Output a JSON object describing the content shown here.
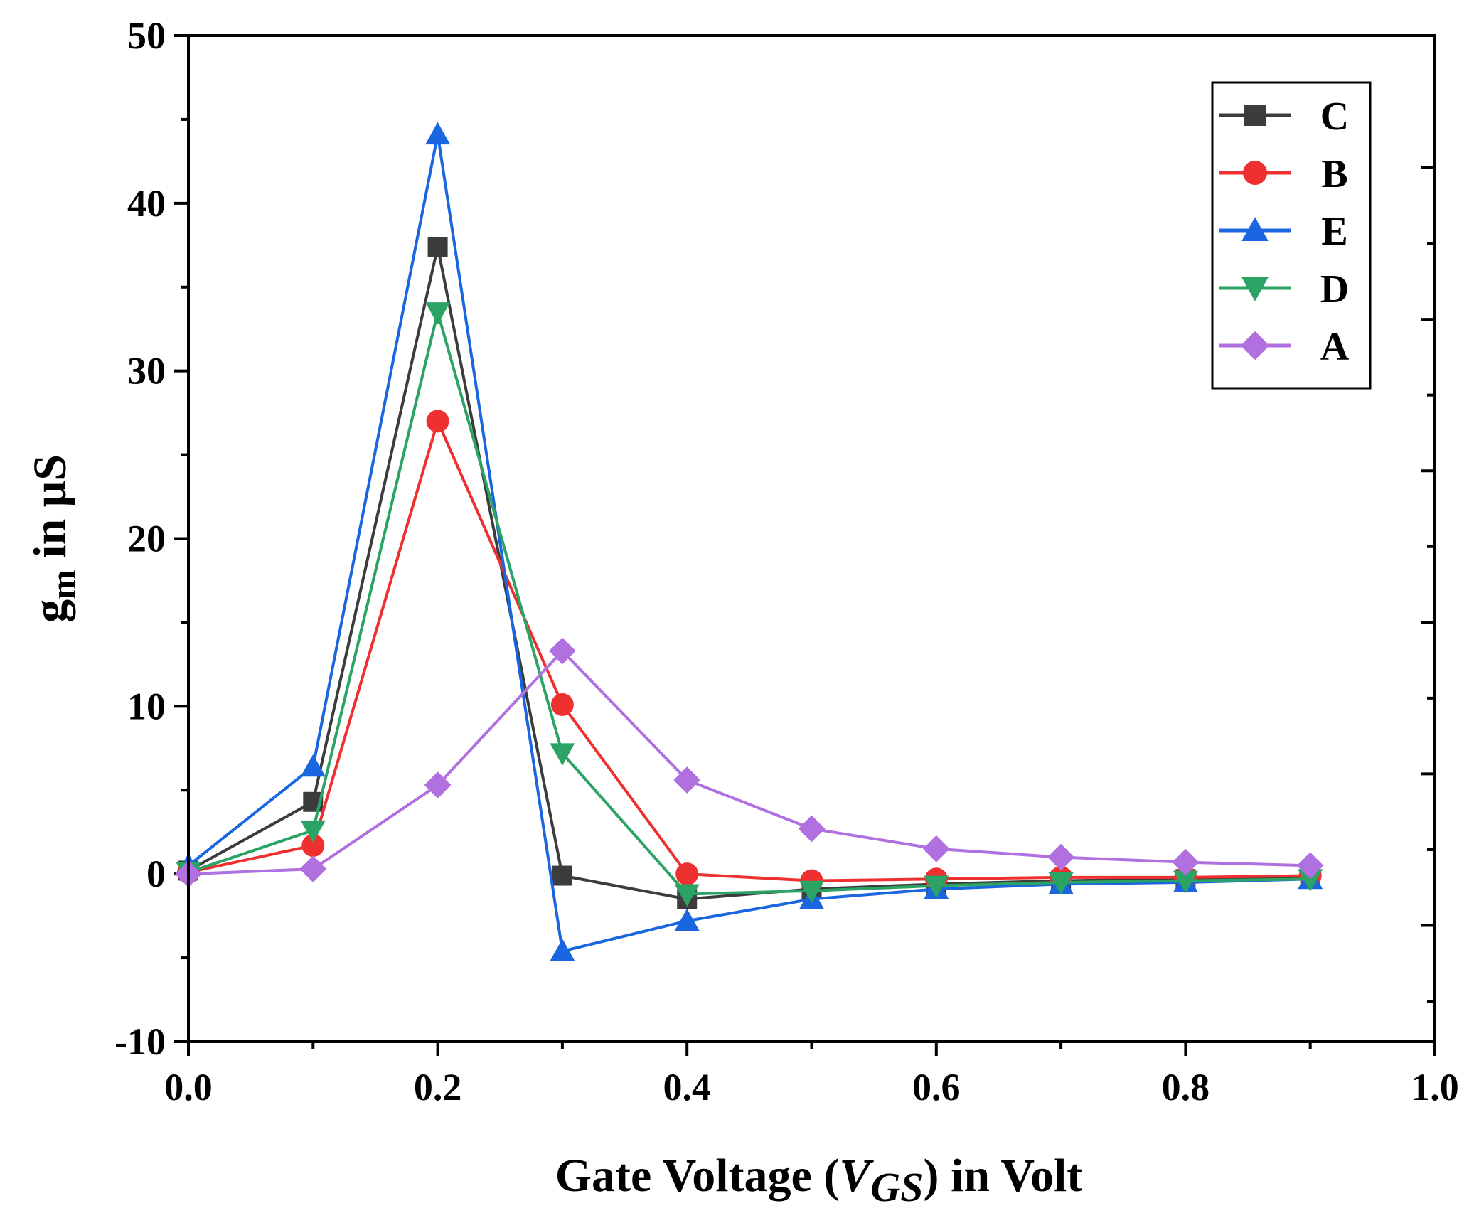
{
  "chart_data": {
    "type": "line",
    "xlabel": {
      "prefix": "Gate Voltage (",
      "var": "V",
      "sub": "GS",
      "suffix": ") in Volt"
    },
    "ylabel": {
      "base": "g",
      "sub": "m",
      "suffix": " in μS"
    },
    "xlim": [
      0,
      1.0
    ],
    "ylim": [
      -10,
      50
    ],
    "x_ticks": [
      0.0,
      0.2,
      0.4,
      0.6,
      0.8,
      1.0
    ],
    "x_tick_labels": [
      "0.0",
      "0.2",
      "0.4",
      "0.6",
      "0.8",
      "1.0"
    ],
    "y_ticks": [
      -10,
      0,
      10,
      20,
      30,
      40,
      50
    ],
    "y_tick_labels": [
      "-10",
      "0",
      "10",
      "20",
      "30",
      "40",
      "50"
    ],
    "legend_position": "top-right",
    "x": [
      0.0,
      0.1,
      0.2,
      0.3,
      0.4,
      0.5,
      0.6,
      0.7,
      0.8,
      0.9
    ],
    "series": [
      {
        "name": "C",
        "color": "#3c3c3c",
        "marker": "square",
        "values": [
          0.2,
          4.3,
          37.4,
          -0.1,
          -1.5,
          -0.9,
          -0.6,
          -0.4,
          -0.3,
          -0.2
        ]
      },
      {
        "name": "B",
        "color": "#ee3030",
        "marker": "circle",
        "values": [
          0.1,
          1.7,
          27.0,
          10.1,
          0.0,
          -0.4,
          -0.3,
          -0.2,
          -0.2,
          -0.1
        ]
      },
      {
        "name": "E",
        "color": "#1a66e0",
        "marker": "triangle-up",
        "values": [
          0.5,
          6.4,
          44.1,
          -4.6,
          -2.8,
          -1.5,
          -0.9,
          -0.6,
          -0.5,
          -0.3
        ]
      },
      {
        "name": "D",
        "color": "#2aa365",
        "marker": "triangle-down",
        "values": [
          0.1,
          2.6,
          33.5,
          7.2,
          -1.2,
          -1.0,
          -0.7,
          -0.5,
          -0.4,
          -0.3
        ]
      },
      {
        "name": "A",
        "color": "#b070e0",
        "marker": "diamond",
        "values": [
          0.0,
          0.3,
          5.3,
          13.3,
          5.6,
          2.7,
          1.5,
          1.0,
          0.7,
          0.5
        ]
      }
    ]
  }
}
